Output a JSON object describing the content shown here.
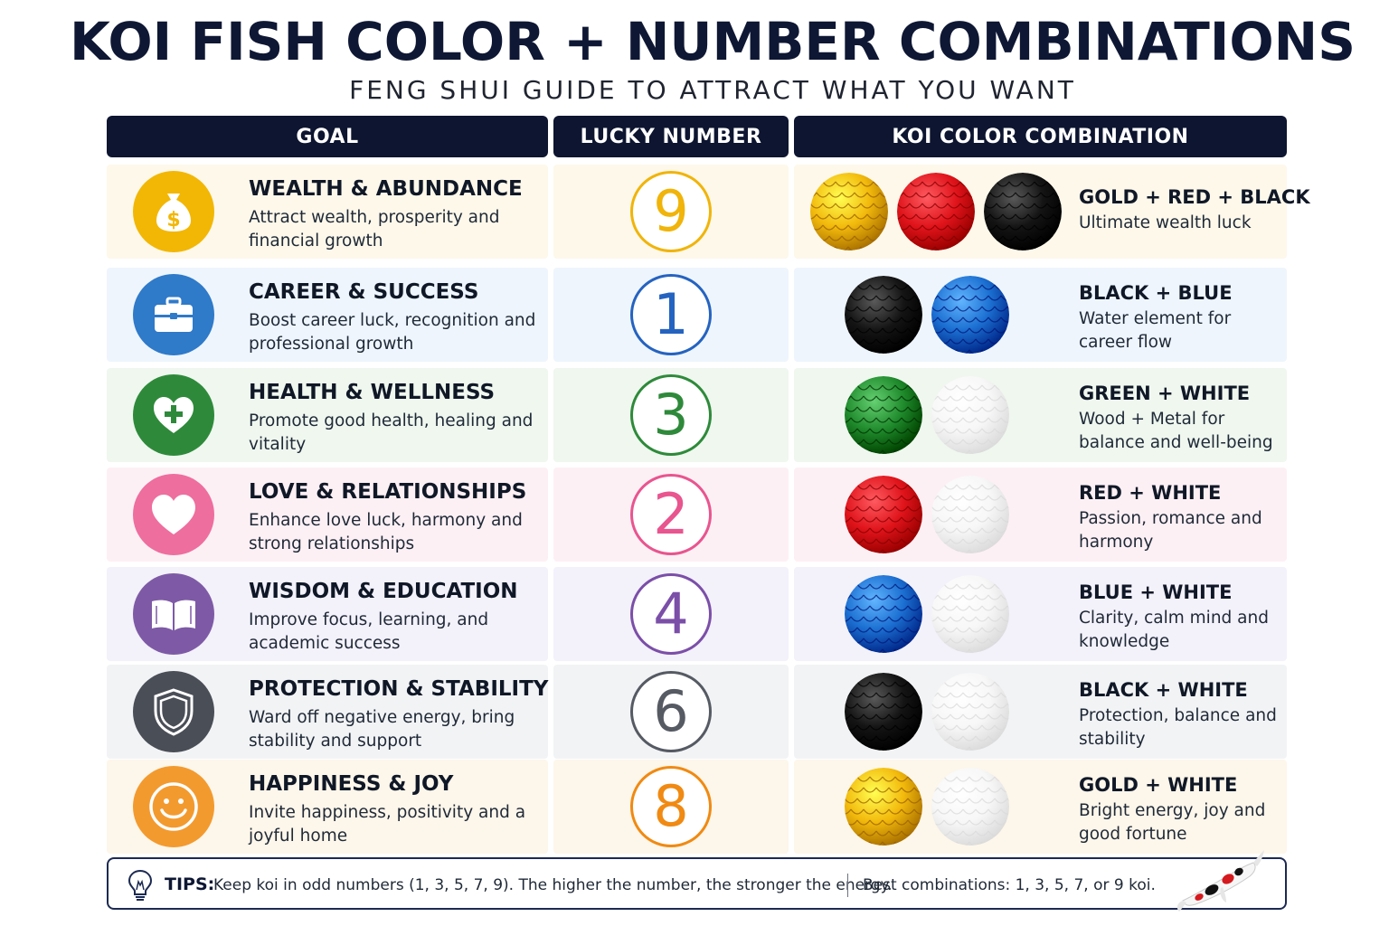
{
  "header": {
    "title": "KOI FISH COLOR + NUMBER COMBINATIONS",
    "subtitle": "FENG SHUI GUIDE TO ATTRACT WHAT YOU WANT"
  },
  "columns": {
    "goal": "GOAL",
    "number": "LUCKY NUMBER",
    "combo": "KOI COLOR COMBINATION"
  },
  "rows": [
    {
      "icon": "money-bag-icon",
      "icon_color": "#f2b705",
      "bg": "#fdf8ea",
      "title": "WEALTH & ABUNDANCE",
      "desc": "Attract wealth, prosperity and financial growth",
      "number": "9",
      "number_color": "#f0b40a",
      "colors": [
        "gold",
        "red",
        "black"
      ],
      "combo_title": "GOLD + RED + BLACK",
      "combo_desc": "Ultimate wealth luck"
    },
    {
      "icon": "briefcase-icon",
      "icon_color": "#2f7ac9",
      "bg": "#eef5fd",
      "title": "CAREER & SUCCESS",
      "desc": "Boost career luck, recognition and professional growth",
      "number": "1",
      "number_color": "#2563c0",
      "colors": [
        "black",
        "blue"
      ],
      "combo_title": "BLACK + BLUE",
      "combo_desc": "Water element for career flow"
    },
    {
      "icon": "heart-plus-icon",
      "icon_color": "#2e8a3a",
      "bg": "#eff7ef",
      "title": "HEALTH & WELLNESS",
      "desc": "Promote good health, healing and vitality",
      "number": "3",
      "number_color": "#2e8a3a",
      "colors": [
        "green",
        "white"
      ],
      "combo_title": "GREEN + WHITE",
      "combo_desc": "Wood + Metal for balance and well-being"
    },
    {
      "icon": "heart-icon",
      "icon_color": "#ee6e9e",
      "bg": "#fdf0f4",
      "title": "LOVE & RELATIONSHIPS",
      "desc": "Enhance love luck, harmony and strong relationships",
      "number": "2",
      "number_color": "#e8558f",
      "colors": [
        "red",
        "white"
      ],
      "combo_title": "RED + WHITE",
      "combo_desc": "Passion, romance and harmony"
    },
    {
      "icon": "book-icon",
      "icon_color": "#7e5aa6",
      "bg": "#f3f1fa",
      "title": "WISDOM & EDUCATION",
      "desc": "Improve focus, learning, and academic success",
      "number": "4",
      "number_color": "#7b4fa8",
      "colors": [
        "blue",
        "white"
      ],
      "combo_title": "BLUE + WHITE",
      "combo_desc": "Clarity, calm mind and knowledge"
    },
    {
      "icon": "shield-icon",
      "icon_color": "#4a4e57",
      "bg": "#f2f3f5",
      "title": "PROTECTION & STABILITY",
      "desc": "Ward off negative energy, bring stability and support",
      "number": "6",
      "number_color": "#555a63",
      "colors": [
        "black",
        "white"
      ],
      "combo_title": "BLACK + WHITE",
      "combo_desc": "Protection, balance and stability"
    },
    {
      "icon": "smiley-icon",
      "icon_color": "#f39a2e",
      "bg": "#fdf6ea",
      "title": "HAPPINESS & JOY",
      "desc": "Invite happiness, positivity and a joyful home",
      "number": "8",
      "number_color": "#f08a12",
      "colors": [
        "gold",
        "white"
      ],
      "combo_title": "GOLD + WHITE",
      "combo_desc": "Bright energy, joy and good fortune"
    }
  ],
  "tips": {
    "label": "TIPS:",
    "text": "Keep koi in odd numbers (1, 3, 5, 7, 9). The higher the number, the stronger the energy.",
    "best": "Best combinations: 1, 3, 5, 7, or 9 koi.",
    "icon": "lightbulb-icon",
    "decoration": "koi-fish-icon"
  },
  "palette": {
    "gold": "#f2b90c",
    "red": "#e0141b",
    "black": "#141414",
    "blue": "#1b6fd1",
    "green": "#1f8a2c",
    "white": "#f7f7f7"
  }
}
